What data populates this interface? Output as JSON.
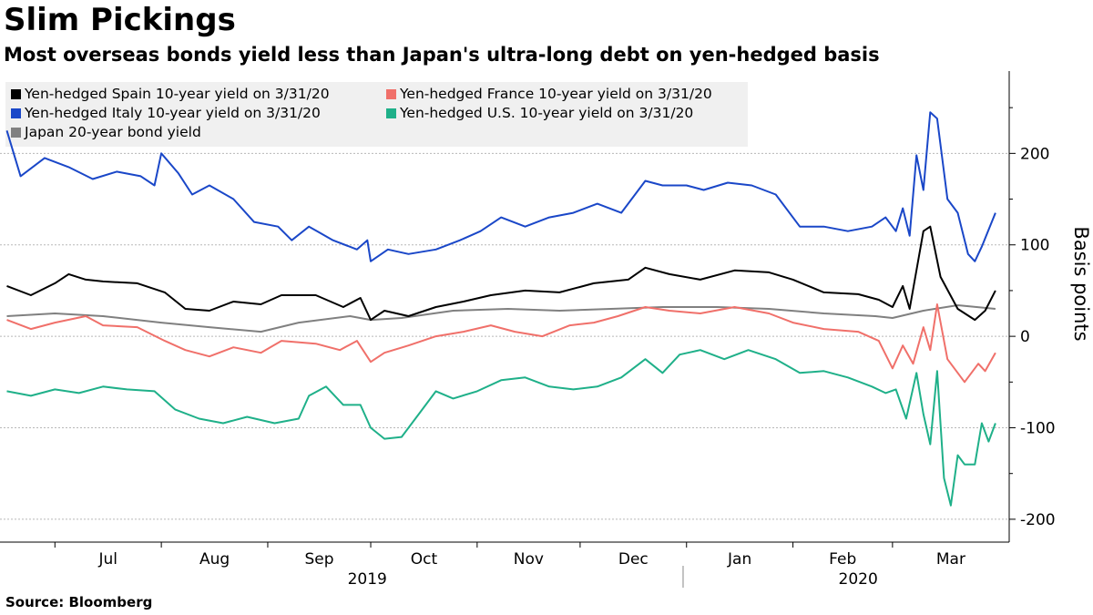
{
  "title": "Slim Pickings",
  "subtitle": "Most overseas bonds yield less than Japan's ultra-long debt on yen-hedged basis",
  "source": "Source: Bloomberg",
  "chart_data": {
    "type": "line",
    "ylabel": "Basis points",
    "ylim": [
      -225,
      290
    ],
    "yticks": [
      -200,
      -100,
      0,
      100,
      200
    ],
    "y_axis_side": "right",
    "grid": "horizontal dotted",
    "legend_position": "top-left",
    "x_start": "2019-06-17",
    "x_end": "2020-03-31",
    "month_labels": [
      {
        "date": "2019-07-01",
        "label": "Jul"
      },
      {
        "date": "2019-08-01",
        "label": "Aug"
      },
      {
        "date": "2019-09-01",
        "label": "Sep"
      },
      {
        "date": "2019-10-01",
        "label": "Oct"
      },
      {
        "date": "2019-11-01",
        "label": "Nov"
      },
      {
        "date": "2019-12-01",
        "label": "Dec"
      },
      {
        "date": "2020-01-01",
        "label": "Jan"
      },
      {
        "date": "2020-02-01",
        "label": "Feb"
      },
      {
        "date": "2020-03-01",
        "label": "Mar"
      }
    ],
    "year_labels": [
      {
        "date": "2019-09-30",
        "label": "2019"
      },
      {
        "date": "2020-02-20",
        "label": "2020"
      }
    ],
    "year_divider_date": "2019-12-31",
    "series": [
      {
        "name": "Yen-hedged Spain 10-year yield on 3/31/20",
        "color": "#000000",
        "points": [
          [
            "2019-06-17",
            55
          ],
          [
            "2019-06-24",
            45
          ],
          [
            "2019-07-01",
            58
          ],
          [
            "2019-07-05",
            68
          ],
          [
            "2019-07-10",
            62
          ],
          [
            "2019-07-15",
            60
          ],
          [
            "2019-07-25",
            58
          ],
          [
            "2019-08-02",
            48
          ],
          [
            "2019-08-08",
            30
          ],
          [
            "2019-08-15",
            28
          ],
          [
            "2019-08-22",
            38
          ],
          [
            "2019-08-30",
            35
          ],
          [
            "2019-09-05",
            45
          ],
          [
            "2019-09-15",
            45
          ],
          [
            "2019-09-23",
            32
          ],
          [
            "2019-09-28",
            42
          ],
          [
            "2019-10-01",
            18
          ],
          [
            "2019-10-05",
            28
          ],
          [
            "2019-10-12",
            22
          ],
          [
            "2019-10-20",
            32
          ],
          [
            "2019-10-28",
            38
          ],
          [
            "2019-11-05",
            45
          ],
          [
            "2019-11-15",
            50
          ],
          [
            "2019-11-25",
            48
          ],
          [
            "2019-12-05",
            58
          ],
          [
            "2019-12-15",
            62
          ],
          [
            "2019-12-20",
            75
          ],
          [
            "2019-12-27",
            68
          ],
          [
            "2020-01-05",
            62
          ],
          [
            "2020-01-15",
            72
          ],
          [
            "2020-01-25",
            70
          ],
          [
            "2020-02-01",
            62
          ],
          [
            "2020-02-10",
            48
          ],
          [
            "2020-02-20",
            46
          ],
          [
            "2020-02-26",
            40
          ],
          [
            "2020-03-01",
            32
          ],
          [
            "2020-03-04",
            55
          ],
          [
            "2020-03-06",
            30
          ],
          [
            "2020-03-10",
            115
          ],
          [
            "2020-03-12",
            120
          ],
          [
            "2020-03-15",
            65
          ],
          [
            "2020-03-20",
            30
          ],
          [
            "2020-03-25",
            18
          ],
          [
            "2020-03-28",
            28
          ],
          [
            "2020-03-31",
            50
          ]
        ]
      },
      {
        "name": "Yen-hedged France 10-year yield on 3/31/20",
        "color": "#f0706a",
        "points": [
          [
            "2019-06-17",
            18
          ],
          [
            "2019-06-24",
            8
          ],
          [
            "2019-07-01",
            15
          ],
          [
            "2019-07-10",
            22
          ],
          [
            "2019-07-15",
            12
          ],
          [
            "2019-07-25",
            10
          ],
          [
            "2019-08-02",
            -5
          ],
          [
            "2019-08-08",
            -15
          ],
          [
            "2019-08-15",
            -22
          ],
          [
            "2019-08-22",
            -12
          ],
          [
            "2019-08-30",
            -18
          ],
          [
            "2019-09-05",
            -5
          ],
          [
            "2019-09-15",
            -8
          ],
          [
            "2019-09-22",
            -15
          ],
          [
            "2019-09-27",
            -5
          ],
          [
            "2019-10-01",
            -28
          ],
          [
            "2019-10-05",
            -18
          ],
          [
            "2019-10-12",
            -10
          ],
          [
            "2019-10-20",
            0
          ],
          [
            "2019-10-28",
            5
          ],
          [
            "2019-11-05",
            12
          ],
          [
            "2019-11-12",
            5
          ],
          [
            "2019-11-20",
            0
          ],
          [
            "2019-11-28",
            12
          ],
          [
            "2019-12-05",
            15
          ],
          [
            "2019-12-12",
            22
          ],
          [
            "2019-12-20",
            32
          ],
          [
            "2019-12-27",
            28
          ],
          [
            "2020-01-05",
            25
          ],
          [
            "2020-01-15",
            32
          ],
          [
            "2020-01-25",
            25
          ],
          [
            "2020-02-01",
            15
          ],
          [
            "2020-02-10",
            8
          ],
          [
            "2020-02-20",
            5
          ],
          [
            "2020-02-26",
            -5
          ],
          [
            "2020-03-01",
            -35
          ],
          [
            "2020-03-04",
            -10
          ],
          [
            "2020-03-07",
            -30
          ],
          [
            "2020-03-10",
            10
          ],
          [
            "2020-03-12",
            -15
          ],
          [
            "2020-03-14",
            35
          ],
          [
            "2020-03-17",
            -25
          ],
          [
            "2020-03-22",
            -50
          ],
          [
            "2020-03-26",
            -30
          ],
          [
            "2020-03-28",
            -38
          ],
          [
            "2020-03-31",
            -18
          ]
        ]
      },
      {
        "name": "Yen-hedged Italy 10-year yield on 3/31/20",
        "color": "#1a47c8",
        "points": [
          [
            "2019-06-17",
            225
          ],
          [
            "2019-06-21",
            175
          ],
          [
            "2019-06-28",
            195
          ],
          [
            "2019-07-05",
            185
          ],
          [
            "2019-07-12",
            172
          ],
          [
            "2019-07-19",
            180
          ],
          [
            "2019-07-26",
            175
          ],
          [
            "2019-07-30",
            165
          ],
          [
            "2019-08-01",
            200
          ],
          [
            "2019-08-06",
            178
          ],
          [
            "2019-08-10",
            155
          ],
          [
            "2019-08-15",
            165
          ],
          [
            "2019-08-22",
            150
          ],
          [
            "2019-08-28",
            125
          ],
          [
            "2019-09-04",
            120
          ],
          [
            "2019-09-08",
            105
          ],
          [
            "2019-09-13",
            120
          ],
          [
            "2019-09-20",
            105
          ],
          [
            "2019-09-27",
            95
          ],
          [
            "2019-09-30",
            105
          ],
          [
            "2019-10-01",
            82
          ],
          [
            "2019-10-06",
            95
          ],
          [
            "2019-10-12",
            90
          ],
          [
            "2019-10-20",
            95
          ],
          [
            "2019-10-27",
            105
          ],
          [
            "2019-11-02",
            115
          ],
          [
            "2019-11-08",
            130
          ],
          [
            "2019-11-15",
            120
          ],
          [
            "2019-11-22",
            130
          ],
          [
            "2019-11-29",
            135
          ],
          [
            "2019-12-06",
            145
          ],
          [
            "2019-12-13",
            135
          ],
          [
            "2019-12-20",
            170
          ],
          [
            "2019-12-25",
            165
          ],
          [
            "2020-01-01",
            165
          ],
          [
            "2020-01-06",
            160
          ],
          [
            "2020-01-13",
            168
          ],
          [
            "2020-01-20",
            165
          ],
          [
            "2020-01-27",
            155
          ],
          [
            "2020-02-03",
            120
          ],
          [
            "2020-02-10",
            120
          ],
          [
            "2020-02-17",
            115
          ],
          [
            "2020-02-24",
            120
          ],
          [
            "2020-02-28",
            130
          ],
          [
            "2020-03-02",
            115
          ],
          [
            "2020-03-04",
            140
          ],
          [
            "2020-03-06",
            110
          ],
          [
            "2020-03-08",
            198
          ],
          [
            "2020-03-10",
            160
          ],
          [
            "2020-03-12",
            245
          ],
          [
            "2020-03-14",
            238
          ],
          [
            "2020-03-17",
            150
          ],
          [
            "2020-03-20",
            135
          ],
          [
            "2020-03-23",
            90
          ],
          [
            "2020-03-25",
            82
          ],
          [
            "2020-03-27",
            98
          ],
          [
            "2020-03-31",
            135
          ]
        ]
      },
      {
        "name": "Yen-hedged U.S. 10-year yield on 3/31/20",
        "color": "#1fb089",
        "points": [
          [
            "2019-06-17",
            -60
          ],
          [
            "2019-06-24",
            -65
          ],
          [
            "2019-07-01",
            -58
          ],
          [
            "2019-07-08",
            -62
          ],
          [
            "2019-07-15",
            -55
          ],
          [
            "2019-07-22",
            -58
          ],
          [
            "2019-07-30",
            -60
          ],
          [
            "2019-08-05",
            -80
          ],
          [
            "2019-08-12",
            -90
          ],
          [
            "2019-08-19",
            -95
          ],
          [
            "2019-08-26",
            -88
          ],
          [
            "2019-09-03",
            -95
          ],
          [
            "2019-09-10",
            -90
          ],
          [
            "2019-09-13",
            -65
          ],
          [
            "2019-09-18",
            -55
          ],
          [
            "2019-09-23",
            -75
          ],
          [
            "2019-09-28",
            -75
          ],
          [
            "2019-10-01",
            -100
          ],
          [
            "2019-10-05",
            -112
          ],
          [
            "2019-10-10",
            -110
          ],
          [
            "2019-10-15",
            -85
          ],
          [
            "2019-10-20",
            -60
          ],
          [
            "2019-10-25",
            -68
          ],
          [
            "2019-11-01",
            -60
          ],
          [
            "2019-11-08",
            -48
          ],
          [
            "2019-11-15",
            -45
          ],
          [
            "2019-11-22",
            -55
          ],
          [
            "2019-11-29",
            -58
          ],
          [
            "2019-12-06",
            -55
          ],
          [
            "2019-12-13",
            -45
          ],
          [
            "2019-12-20",
            -25
          ],
          [
            "2019-12-25",
            -40
          ],
          [
            "2019-12-30",
            -20
          ],
          [
            "2020-01-05",
            -15
          ],
          [
            "2020-01-12",
            -25
          ],
          [
            "2020-01-19",
            -15
          ],
          [
            "2020-01-27",
            -25
          ],
          [
            "2020-02-03",
            -40
          ],
          [
            "2020-02-10",
            -38
          ],
          [
            "2020-02-17",
            -45
          ],
          [
            "2020-02-24",
            -55
          ],
          [
            "2020-02-28",
            -62
          ],
          [
            "2020-03-02",
            -58
          ],
          [
            "2020-03-05",
            -90
          ],
          [
            "2020-03-08",
            -40
          ],
          [
            "2020-03-10",
            -85
          ],
          [
            "2020-03-12",
            -118
          ],
          [
            "2020-03-14",
            -38
          ],
          [
            "2020-03-16",
            -155
          ],
          [
            "2020-03-18",
            -185
          ],
          [
            "2020-03-20",
            -130
          ],
          [
            "2020-03-22",
            -140
          ],
          [
            "2020-03-25",
            -140
          ],
          [
            "2020-03-27",
            -95
          ],
          [
            "2020-03-29",
            -115
          ],
          [
            "2020-03-31",
            -95
          ]
        ]
      },
      {
        "name": "Japan 20-year bond yield",
        "color": "#808080",
        "points": [
          [
            "2019-06-17",
            22
          ],
          [
            "2019-07-01",
            25
          ],
          [
            "2019-07-15",
            22
          ],
          [
            "2019-08-01",
            15
          ],
          [
            "2019-08-15",
            10
          ],
          [
            "2019-08-30",
            5
          ],
          [
            "2019-09-10",
            15
          ],
          [
            "2019-09-25",
            22
          ],
          [
            "2019-10-01",
            18
          ],
          [
            "2019-10-10",
            20
          ],
          [
            "2019-10-25",
            28
          ],
          [
            "2019-11-10",
            30
          ],
          [
            "2019-11-25",
            28
          ],
          [
            "2019-12-10",
            30
          ],
          [
            "2019-12-25",
            32
          ],
          [
            "2020-01-10",
            32
          ],
          [
            "2020-01-25",
            30
          ],
          [
            "2020-02-10",
            25
          ],
          [
            "2020-02-25",
            22
          ],
          [
            "2020-03-01",
            20
          ],
          [
            "2020-03-10",
            28
          ],
          [
            "2020-03-20",
            34
          ],
          [
            "2020-03-31",
            30
          ]
        ]
      }
    ]
  }
}
